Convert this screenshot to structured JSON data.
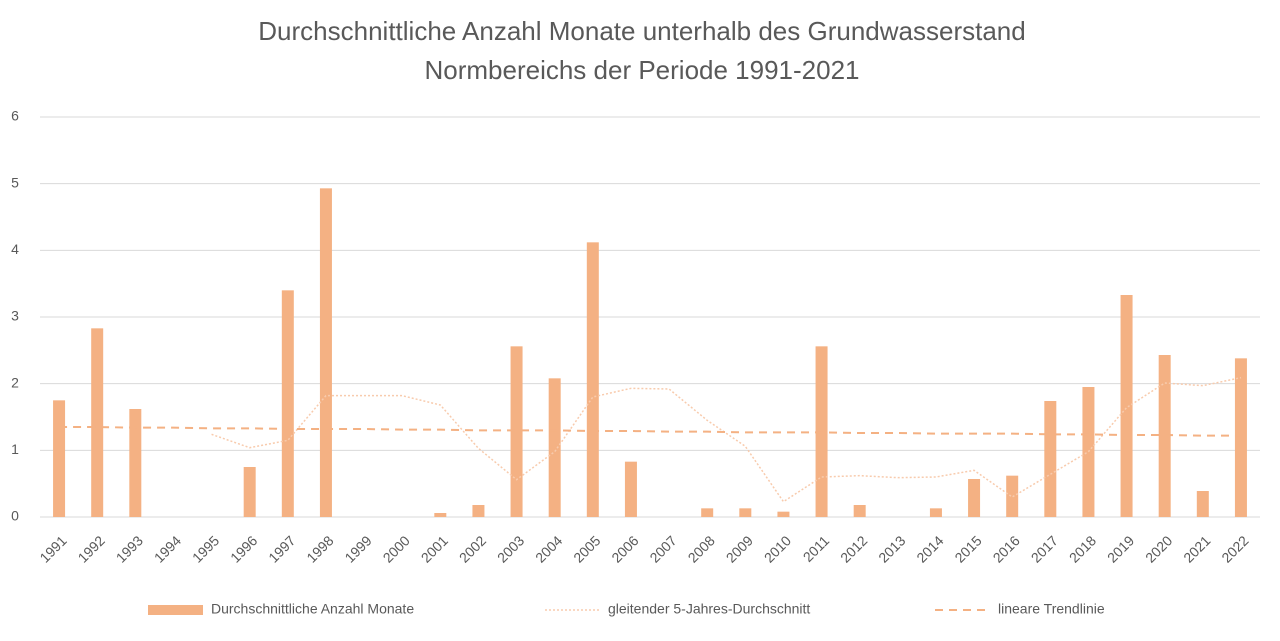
{
  "chart_data": {
    "type": "bar",
    "title": [
      "Durchschnittliche Anzahl Monate unterhalb des Grundwasserstand",
      "Normbereichs der Periode 1991-2021"
    ],
    "categories": [
      "1991",
      "1992",
      "1993",
      "1994",
      "1995",
      "1996",
      "1997",
      "1998",
      "1999",
      "2000",
      "2001",
      "2002",
      "2003",
      "2004",
      "2005",
      "2006",
      "2007",
      "2008",
      "2009",
      "2010",
      "2011",
      "2012",
      "2013",
      "2014",
      "2015",
      "2016",
      "2017",
      "2018",
      "2019",
      "2020",
      "2021",
      "2022"
    ],
    "series": [
      {
        "name": "Durchschnittliche Anzahl Monate",
        "type": "bar",
        "color": "#f4b183",
        "values": [
          1.75,
          2.83,
          1.62,
          0,
          0,
          0.75,
          3.4,
          4.93,
          0,
          0,
          0.06,
          0.18,
          2.56,
          2.08,
          4.12,
          0.83,
          0,
          0.13,
          0.13,
          0.08,
          2.56,
          0.18,
          0,
          0.13,
          0.57,
          0.62,
          1.74,
          1.95,
          3.33,
          2.43,
          0.39,
          2.38
        ]
      },
      {
        "name": "gleitender 5-Jahres-Durchschnitt",
        "type": "line",
        "style": "dotted",
        "color": "#f8cbad",
        "values": [
          null,
          null,
          null,
          null,
          1.24,
          1.04,
          1.15,
          1.82,
          1.82,
          1.82,
          1.68,
          1.03,
          0.56,
          0.98,
          1.8,
          1.93,
          1.92,
          1.45,
          1.06,
          0.23,
          0.6,
          0.62,
          0.59,
          0.6,
          0.7,
          0.3,
          0.64,
          0.98,
          1.64,
          2.01,
          1.97,
          2.09
        ]
      },
      {
        "name": "lineare Trendlinie",
        "type": "line",
        "style": "dashed",
        "color": "#f4b183",
        "values": [
          1.35,
          1.35,
          1.34,
          1.34,
          1.33,
          1.33,
          1.32,
          1.32,
          1.32,
          1.31,
          1.31,
          1.3,
          1.3,
          1.3,
          1.29,
          1.29,
          1.28,
          1.28,
          1.27,
          1.27,
          1.27,
          1.26,
          1.26,
          1.25,
          1.25,
          1.25,
          1.24,
          1.24,
          1.23,
          1.23,
          1.22,
          1.22
        ]
      }
    ],
    "ylim": [
      0,
      6
    ],
    "yticks": [
      0,
      1,
      2,
      3,
      4,
      5,
      6
    ],
    "grid": true,
    "legend": "bottom"
  }
}
